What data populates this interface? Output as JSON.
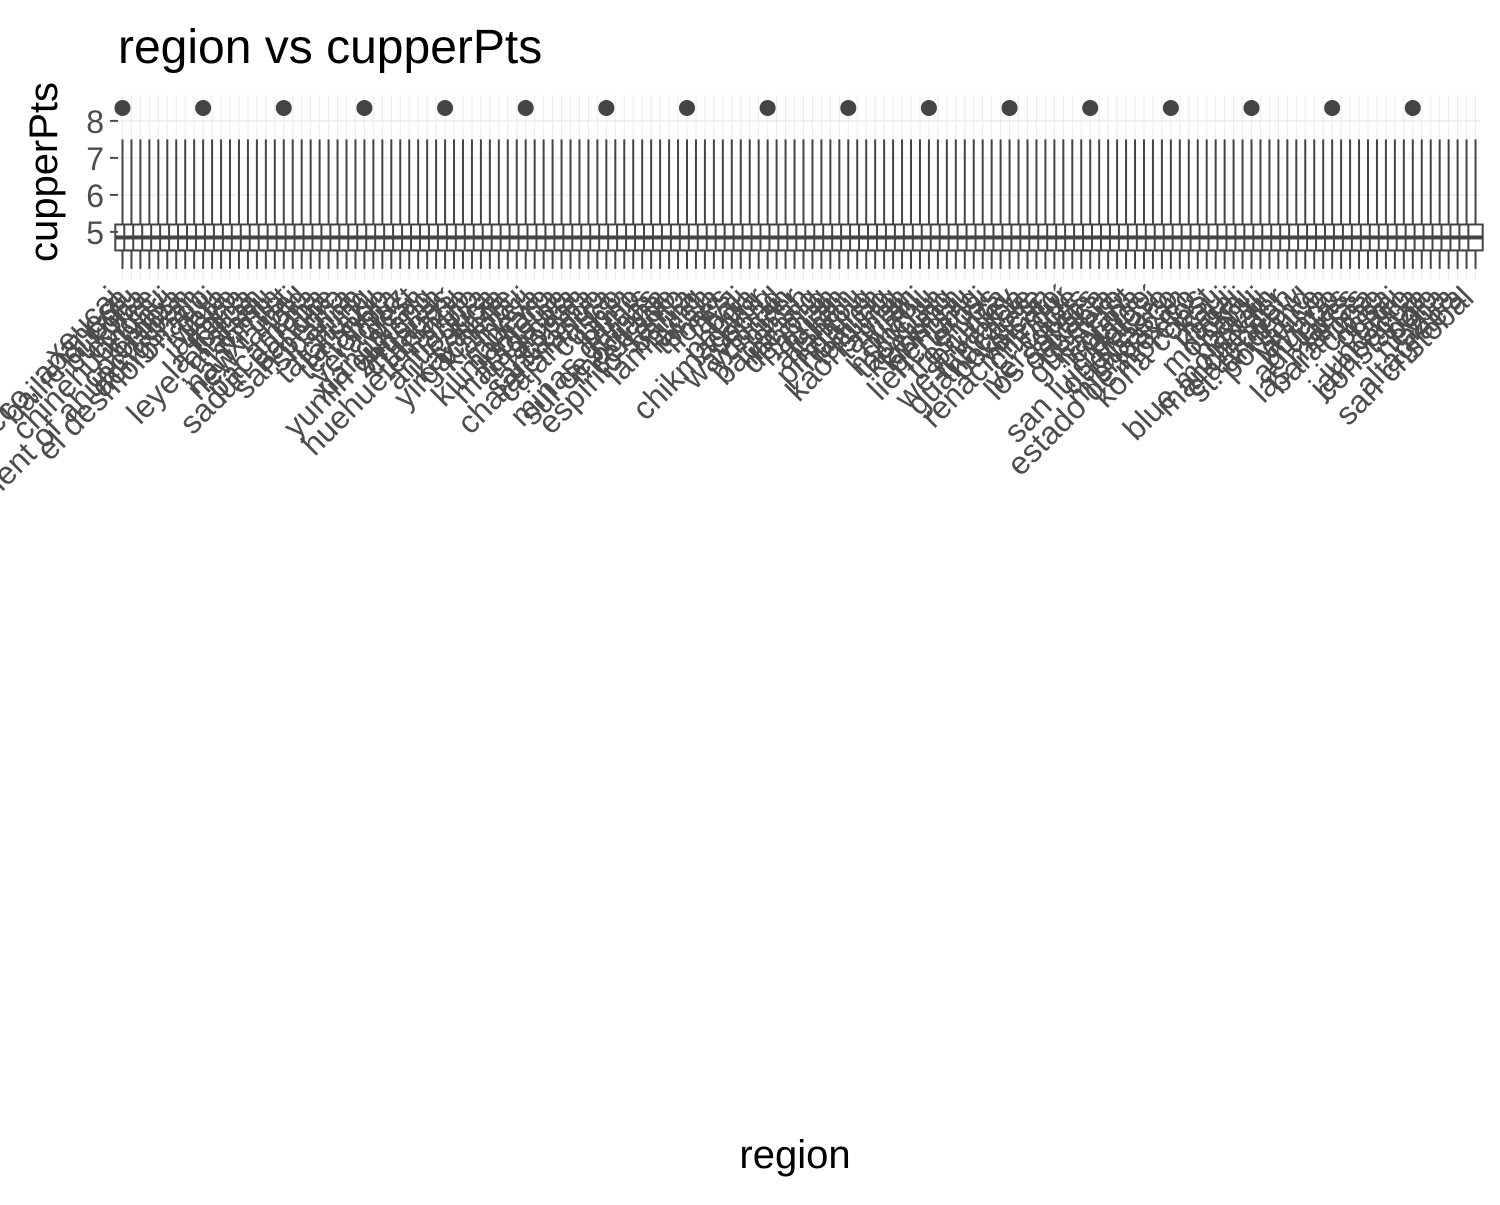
{
  "chart_data": {
    "type": "box",
    "title": "region vs cupperPts",
    "xlabel": "region",
    "ylabel": "cupperPts",
    "ylim": [
      3.7,
      8.7
    ],
    "yticks": [
      5,
      6,
      7,
      8
    ],
    "grid": true,
    "legend": "none",
    "colors": {
      "box": "#444444",
      "grid": "#ebebeb",
      "text": "#4d4d4d",
      "title": "#000000"
    },
    "categories": [
      "xeucai",
      "atacco, apaneca",
      "bailie di bolu",
      "bukoba",
      "coffee",
      "chinehuongnu",
      "chiayi",
      "colombia",
      "department of ahuachapan",
      "dongshan",
      "el desmoronado",
      "guji",
      "iwata",
      "jalisco",
      "kona",
      "la fonda",
      "leye, alishan",
      "mafanu",
      "mmtn",
      "nanxi dist",
      "new taipei",
      "old",
      "pacamara",
      "sacún pampa",
      "sanche",
      "san pedro",
      "sidama",
      "snnp",
      "taichung",
      "tarrazu",
      "tenango",
      "tolima",
      "veracruz",
      "west",
      "xiangshan",
      "yunlin gukeng",
      "zhuolan",
      "chiapas",
      "tarrazú",
      "huehuetenango",
      "nariño",
      "antioquia",
      "cauca",
      "kayanza",
      "yirgacheffe",
      "kiambu",
      "nyeri",
      "mbeya",
      "kilimanjaro",
      "jinotega",
      "matagalpa",
      "marcala",
      "copán",
      "santa ana",
      "chalatenango",
      "cajamarca",
      "cusco",
      "junín",
      "puno",
      "minas gerais",
      "sul de minas",
      "mogiana",
      "cerrado",
      "espírito santo",
      "bahia",
      "lampung",
      "aceh",
      "toraja",
      "flores",
      "java",
      "bali",
      "papua",
      "chikmagalur",
      "coorg",
      "wayanad",
      "yunnan",
      "pu'er",
      "baoshan",
      "lincang",
      "dehong",
      "hainan",
      "fujian",
      "alishan",
      "nantou",
      "pingtung",
      "hualien",
      "taitung",
      "kaohsiung",
      "tainan",
      "yilan",
      "miaoli",
      "hsinchu",
      "taoyuan",
      "keelung",
      "kinmen",
      "penghu",
      "lienchiang",
      "orosi",
      "tres ríos",
      "brunca",
      "west valley",
      "turrialba",
      "guanacaste",
      "boquete",
      "volcán",
      "renacimiento",
      "chiriquí",
      "coclé",
      "veraguas",
      "los santos",
      "oaxaca",
      "puebla",
      "guerrero",
      "nayarit",
      "colima",
      "hidalgo",
      "san luis potosí",
      "queretaro",
      "tabasco",
      "michoacán",
      "estado de méxico",
      "morelos",
      "kona coast",
      "kau",
      "maui",
      "kauai",
      "molokai",
      "oahu",
      "hawaii",
      "blue mountain",
      "manchester",
      "clarendon",
      "st. andrew",
      "portland",
      "yauco",
      "jayuya",
      "utuado",
      "adjuntas",
      "lares",
      "las marías",
      "barahona",
      "cibao",
      "ocoa",
      "bani",
      "juncalito",
      "jarabacoa",
      "constanza",
      "polo",
      "neyba",
      "azua",
      "altagracia",
      "san cristóbal"
    ],
    "values_note_unit": "cupperPts",
    "median_typical": 4.85,
    "q1_typical": 4.5,
    "q3_typical": 5.2,
    "whisker_low_typical": 4.0,
    "whisker_high_typical": 7.5,
    "outliers_max": 8.35
  }
}
